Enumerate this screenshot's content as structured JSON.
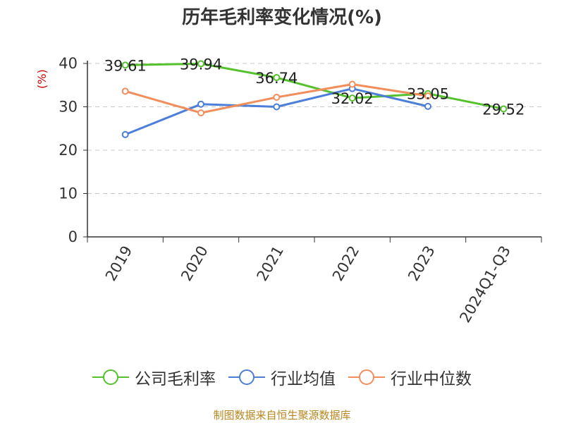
{
  "chart_data": {
    "type": "line",
    "title": "历年毛利率变化情况(%)",
    "ylabel": "(%)",
    "categories": [
      "2019",
      "2020",
      "2021",
      "2022",
      "2023",
      "2024Q1-Q3"
    ],
    "ylim": [
      0,
      40
    ],
    "yticks": [
      0,
      10,
      20,
      30,
      40
    ],
    "grid": true,
    "legend_position": "bottom",
    "series": [
      {
        "name": "公司毛利率",
        "color": "#55c12d",
        "values": [
          39.61,
          39.94,
          36.74,
          32.02,
          33.05,
          29.52
        ],
        "labels": [
          "39.61",
          "39.94",
          "36.74",
          "32.02",
          "33.05",
          "29.52"
        ]
      },
      {
        "name": "行业均值",
        "color": "#4c7fd9",
        "values": [
          23.6,
          30.6,
          30.0,
          34.2,
          30.1,
          null
        ]
      },
      {
        "name": "行业中位数",
        "color": "#f28e5b",
        "values": [
          33.6,
          28.6,
          32.2,
          35.2,
          32.5,
          null
        ]
      }
    ]
  },
  "footer": {
    "source": "制图数据来自恒生聚源数据库"
  }
}
